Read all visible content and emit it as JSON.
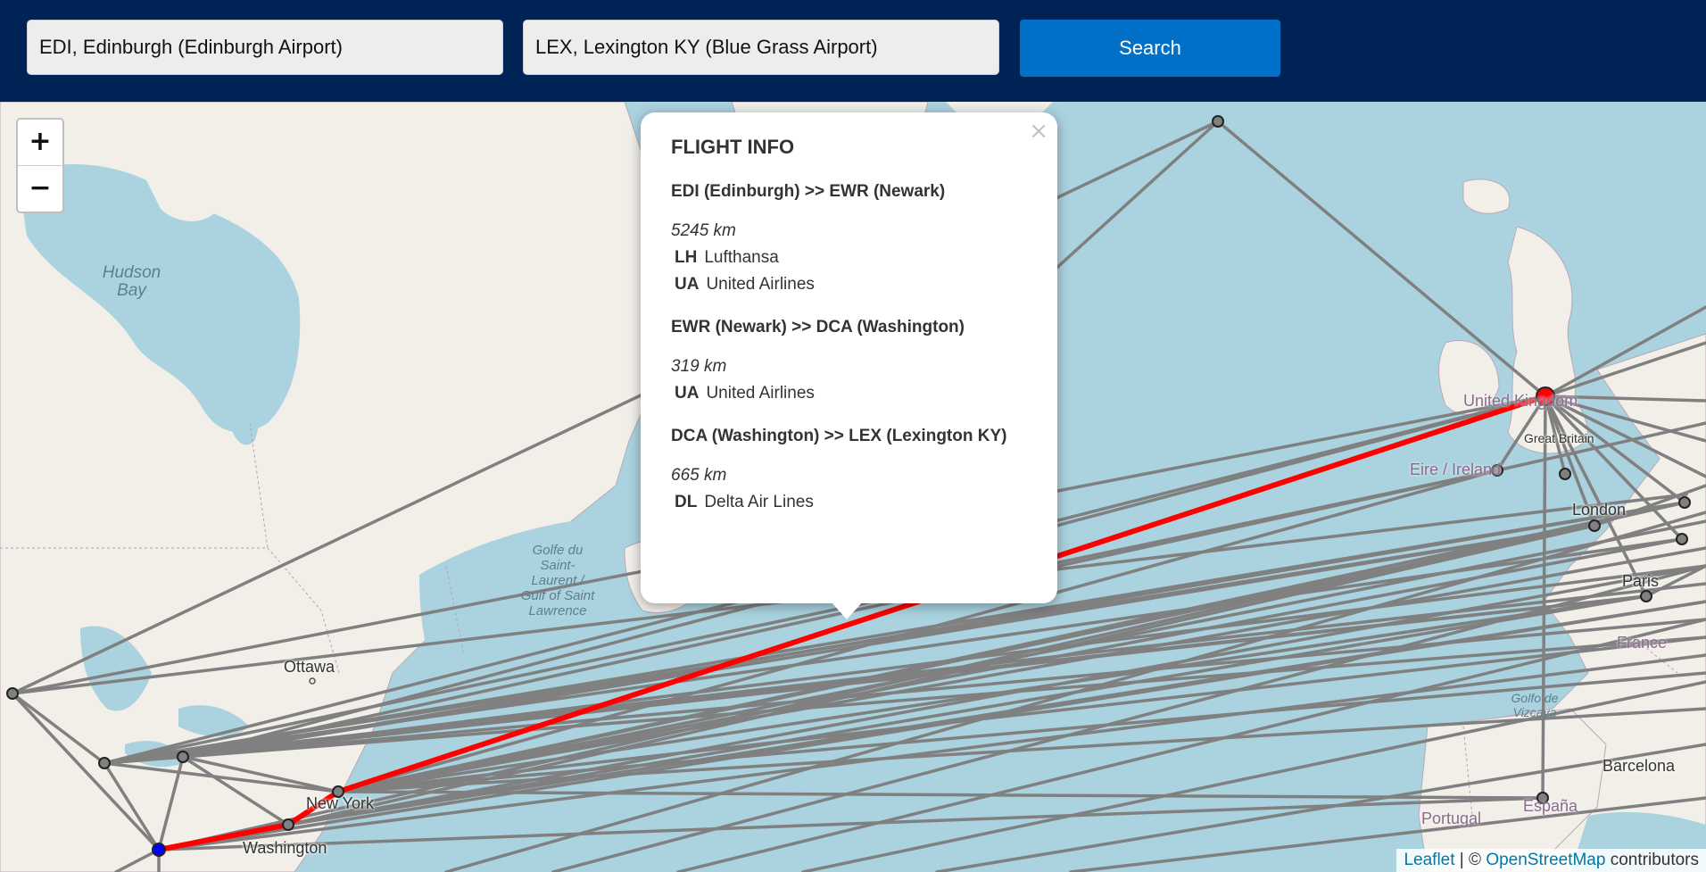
{
  "search": {
    "from_value": "EDI, Edinburgh (Edinburgh Airport)",
    "to_value": "LEX, Lexington KY (Blue Grass Airport)",
    "button_label": "Search"
  },
  "zoom": {
    "in_label": "+",
    "out_label": "−"
  },
  "map_labels": {
    "hudson_bay": "Hudson Bay",
    "gulf": "Golfe du Saint-Laurent / Gulf of Saint Lawrence",
    "ottawa": "Ottawa",
    "new_york": "New York",
    "washington": "Washington",
    "united_kingdom": "United Kingdom",
    "great_britain": "Great Britain",
    "eire": "Eire / Ireland",
    "london": "London",
    "paris": "Paris",
    "france": "France",
    "biscay": "Golfo de Vizcaya",
    "barcelona": "Barcelona",
    "portugal": "Portugal",
    "espana": "España"
  },
  "popup": {
    "title": "FLIGHT INFO",
    "close": "×",
    "segments": [
      {
        "route": "EDI (Edinburgh) >> EWR (Newark)",
        "distance": "5245 km",
        "airlines": [
          {
            "code": "LH",
            "name": "Lufthansa"
          },
          {
            "code": "UA",
            "name": "United Airlines"
          }
        ]
      },
      {
        "route": "EWR (Newark) >> DCA (Washington)",
        "distance": "319 km",
        "airlines": [
          {
            "code": "UA",
            "name": "United Airlines"
          }
        ]
      },
      {
        "route": "DCA (Washington) >> LEX (Lexington KY)",
        "distance": "665 km",
        "airlines": [
          {
            "code": "DL",
            "name": "Delta Air Lines"
          }
        ]
      }
    ]
  },
  "attribution": {
    "leaflet": "Leaflet",
    "sep": " | © ",
    "osm": "OpenStreetMap",
    "suffix": " contributors"
  },
  "colors": {
    "header_bg": "#002356",
    "search_button": "#0070c9",
    "route_highlight": "#ff0000",
    "route_default": "#808080",
    "origin_marker": "#ff0000",
    "destination_marker": "#0000ff"
  }
}
